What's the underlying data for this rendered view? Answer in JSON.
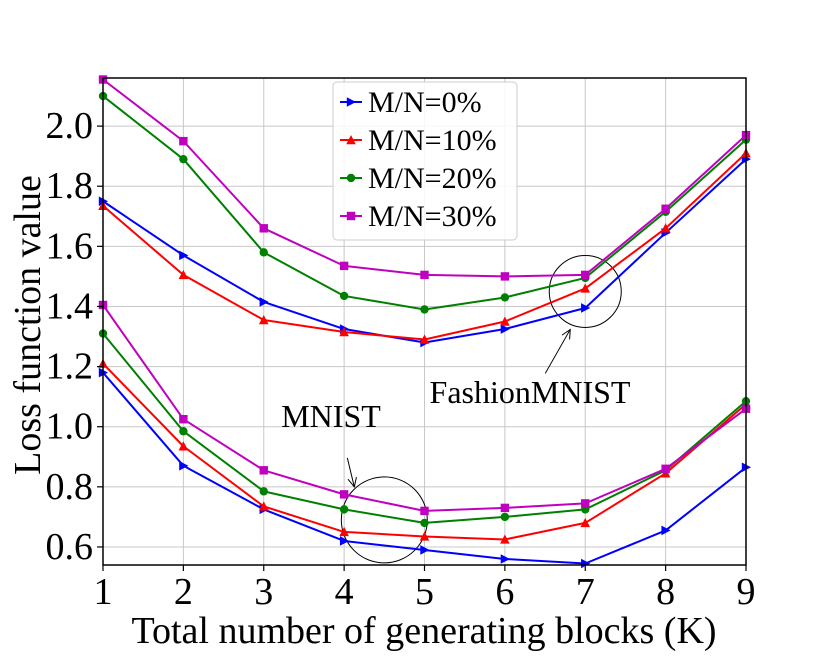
{
  "chart_data": {
    "type": "line",
    "title": "",
    "xlabel": "Total number of generating blocks (K)",
    "ylabel": "Loss function value",
    "xlim": [
      1,
      9
    ],
    "ylim": [
      0.54,
      2.16
    ],
    "grid": true,
    "legend_position": "top-center",
    "x": [
      1,
      2,
      3,
      4,
      5,
      6,
      7,
      8,
      9
    ],
    "x_ticks": [
      1,
      2,
      3,
      4,
      5,
      6,
      7,
      8,
      9
    ],
    "y_ticks": [
      0.6,
      0.8,
      1.0,
      1.2,
      1.4,
      1.6,
      1.8,
      2.0
    ],
    "y_tick_labels": [
      "0.6",
      "0.8",
      "1.0",
      "1.2",
      "1.4",
      "1.6",
      "1.8",
      "2.0"
    ],
    "series": [
      {
        "name": "M/N=0%",
        "color": "#0000ff",
        "marker": "triangle-right",
        "group": "FashionMNIST",
        "values": [
          1.75,
          1.57,
          1.415,
          1.325,
          1.28,
          1.325,
          1.395,
          1.645,
          1.89
        ]
      },
      {
        "name": "M/N=10%",
        "color": "#ff0000",
        "marker": "triangle-up",
        "group": "FashionMNIST",
        "values": [
          1.735,
          1.505,
          1.355,
          1.315,
          1.29,
          1.35,
          1.46,
          1.66,
          1.91
        ]
      },
      {
        "name": "M/N=20%",
        "color": "#008000",
        "marker": "circle",
        "group": "FashionMNIST",
        "values": [
          2.1,
          1.89,
          1.58,
          1.435,
          1.39,
          1.43,
          1.495,
          1.715,
          1.955
        ]
      },
      {
        "name": "M/N=30%",
        "color": "#bf00bf",
        "marker": "square",
        "group": "FashionMNIST",
        "values": [
          2.155,
          1.95,
          1.66,
          1.535,
          1.505,
          1.5,
          1.505,
          1.725,
          1.97
        ]
      },
      {
        "name": "M/N=0%",
        "color": "#0000ff",
        "marker": "triangle-right",
        "group": "MNIST",
        "values": [
          1.18,
          0.87,
          0.725,
          0.62,
          0.59,
          0.56,
          0.545,
          0.655,
          0.865
        ]
      },
      {
        "name": "M/N=10%",
        "color": "#ff0000",
        "marker": "triangle-up",
        "group": "MNIST",
        "values": [
          1.21,
          0.935,
          0.735,
          0.65,
          0.635,
          0.625,
          0.68,
          0.845,
          1.075
        ]
      },
      {
        "name": "M/N=20%",
        "color": "#008000",
        "marker": "circle",
        "group": "MNIST",
        "values": [
          1.31,
          0.985,
          0.785,
          0.725,
          0.68,
          0.7,
          0.725,
          0.855,
          1.085
        ]
      },
      {
        "name": "M/N=30%",
        "color": "#bf00bf",
        "marker": "square",
        "group": "MNIST",
        "values": [
          1.405,
          1.025,
          0.855,
          0.775,
          0.72,
          0.73,
          0.745,
          0.86,
          1.06
        ]
      }
    ],
    "legend": [
      {
        "label": "M/N=0%",
        "color": "#0000ff",
        "marker": "triangle-right"
      },
      {
        "label": "M/N=10%",
        "color": "#ff0000",
        "marker": "triangle-up"
      },
      {
        "label": "M/N=20%",
        "color": "#008000",
        "marker": "circle"
      },
      {
        "label": "M/N=30%",
        "color": "#bf00bf",
        "marker": "square"
      }
    ],
    "annotations": [
      {
        "text": "FashionMNIST",
        "target_x": 7,
        "target_y": 1.45
      },
      {
        "text": "MNIST",
        "target_x": 4.5,
        "target_y": 0.69
      }
    ]
  }
}
